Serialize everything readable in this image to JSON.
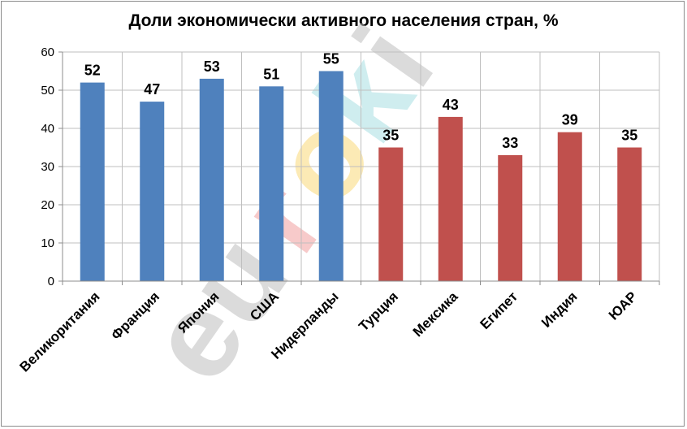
{
  "chart_data": {
    "type": "bar",
    "title": "Доли экономически активного населения стран, %",
    "categories": [
      "Великоритания",
      "Франция",
      "Япония",
      "США",
      "Нидерланды",
      "Турция",
      "Мексика",
      "Египет",
      "Индия",
      "ЮАР"
    ],
    "values": [
      52,
      47,
      53,
      51,
      55,
      35,
      43,
      33,
      39,
      35
    ],
    "bar_colors": [
      "#4f81bd",
      "#4f81bd",
      "#4f81bd",
      "#4f81bd",
      "#4f81bd",
      "#c0504d",
      "#c0504d",
      "#c0504d",
      "#c0504d",
      "#c0504d"
    ],
    "ylim": [
      0,
      60
    ],
    "yticks": [
      0,
      10,
      20,
      30,
      40,
      50,
      60
    ],
    "grid": true,
    "gridline_color": "#bfbfbf",
    "xlabel": "",
    "ylabel": ""
  },
  "watermark": {
    "text_letters": [
      "e",
      "u",
      "r",
      "o",
      "k",
      "i"
    ],
    "letter_colors": [
      "#bfbfbf",
      "#bfbfbf",
      "#f4c2c2",
      "#fbe39a",
      "#bfe8ea",
      "#bfbfbf"
    ]
  }
}
